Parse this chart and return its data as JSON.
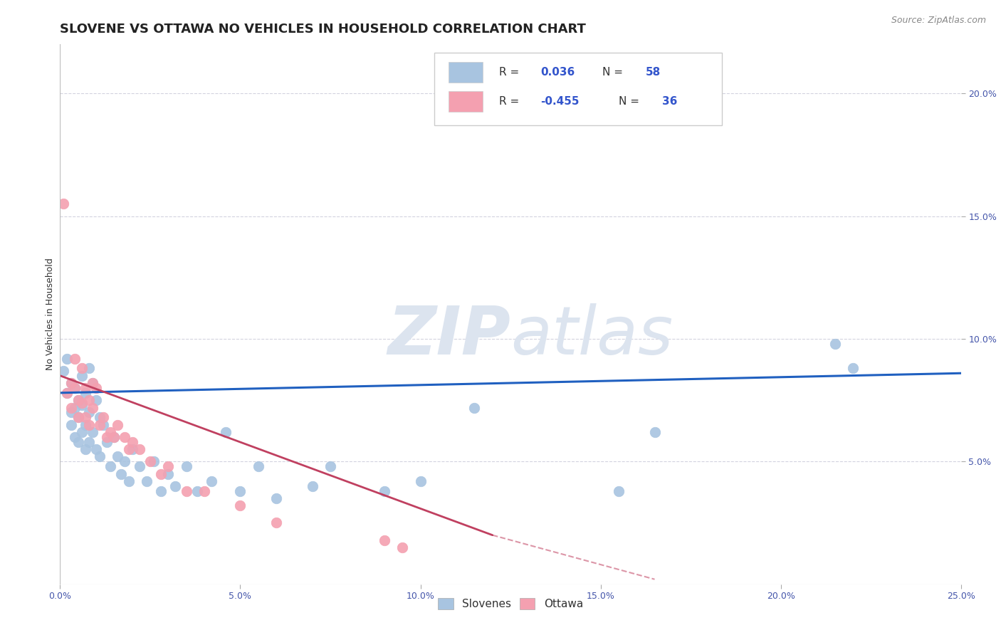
{
  "title": "SLOVENE VS OTTAWA NO VEHICLES IN HOUSEHOLD CORRELATION CHART",
  "source_text": "Source: ZipAtlas.com",
  "ylabel": "No Vehicles in Household",
  "xlim": [
    0,
    0.25
  ],
  "ylim": [
    0,
    0.22
  ],
  "xticks": [
    0.0,
    0.05,
    0.1,
    0.15,
    0.2,
    0.25
  ],
  "yticks": [
    0.05,
    0.1,
    0.15,
    0.2
  ],
  "xtick_labels": [
    "0.0%",
    "5.0%",
    "10.0%",
    "15.0%",
    "20.0%",
    "25.0%"
  ],
  "ytick_labels": [
    "5.0%",
    "10.0%",
    "15.0%",
    "20.0%"
  ],
  "R_slovene": 0.036,
  "N_slovene": 58,
  "R_ottawa": -0.455,
  "N_ottawa": 36,
  "slovene_color": "#a8c4e0",
  "ottawa_color": "#f4a0b0",
  "slovene_line_color": "#2060c0",
  "ottawa_line_color": "#c04060",
  "legend_label_slovene": "Slovenes",
  "legend_label_ottawa": "Ottawa",
  "background_color": "#ffffff",
  "grid_color": "#c8c8d8",
  "watermark_color": "#dce4ef",
  "slovene_x": [
    0.001,
    0.002,
    0.002,
    0.003,
    0.003,
    0.003,
    0.004,
    0.004,
    0.004,
    0.005,
    0.005,
    0.005,
    0.006,
    0.006,
    0.006,
    0.007,
    0.007,
    0.007,
    0.008,
    0.008,
    0.008,
    0.009,
    0.009,
    0.01,
    0.01,
    0.011,
    0.011,
    0.012,
    0.013,
    0.014,
    0.015,
    0.016,
    0.017,
    0.018,
    0.019,
    0.02,
    0.022,
    0.024,
    0.026,
    0.028,
    0.03,
    0.032,
    0.035,
    0.038,
    0.042,
    0.046,
    0.05,
    0.055,
    0.06,
    0.07,
    0.075,
    0.09,
    0.1,
    0.115,
    0.155,
    0.165,
    0.215,
    0.22
  ],
  "slovene_y": [
    0.087,
    0.078,
    0.092,
    0.082,
    0.07,
    0.065,
    0.08,
    0.072,
    0.06,
    0.075,
    0.068,
    0.058,
    0.085,
    0.073,
    0.062,
    0.078,
    0.065,
    0.055,
    0.088,
    0.07,
    0.058,
    0.082,
    0.062,
    0.075,
    0.055,
    0.068,
    0.052,
    0.065,
    0.058,
    0.048,
    0.06,
    0.052,
    0.045,
    0.05,
    0.042,
    0.055,
    0.048,
    0.042,
    0.05,
    0.038,
    0.045,
    0.04,
    0.048,
    0.038,
    0.042,
    0.062,
    0.038,
    0.048,
    0.035,
    0.04,
    0.048,
    0.038,
    0.042,
    0.072,
    0.038,
    0.062,
    0.098,
    0.088
  ],
  "ottawa_x": [
    0.001,
    0.002,
    0.003,
    0.003,
    0.004,
    0.004,
    0.005,
    0.005,
    0.006,
    0.006,
    0.007,
    0.007,
    0.008,
    0.008,
    0.009,
    0.009,
    0.01,
    0.011,
    0.012,
    0.013,
    0.014,
    0.015,
    0.016,
    0.018,
    0.019,
    0.02,
    0.022,
    0.025,
    0.028,
    0.03,
    0.035,
    0.04,
    0.05,
    0.06,
    0.09,
    0.095
  ],
  "ottawa_y": [
    0.155,
    0.078,
    0.082,
    0.072,
    0.092,
    0.08,
    0.075,
    0.068,
    0.088,
    0.074,
    0.08,
    0.068,
    0.075,
    0.065,
    0.082,
    0.072,
    0.08,
    0.065,
    0.068,
    0.06,
    0.062,
    0.06,
    0.065,
    0.06,
    0.055,
    0.058,
    0.055,
    0.05,
    0.045,
    0.048,
    0.038,
    0.038,
    0.032,
    0.025,
    0.018,
    0.015
  ],
  "marker_size": 110,
  "title_fontsize": 13,
  "axis_label_fontsize": 9,
  "tick_fontsize": 9,
  "source_fontsize": 9
}
